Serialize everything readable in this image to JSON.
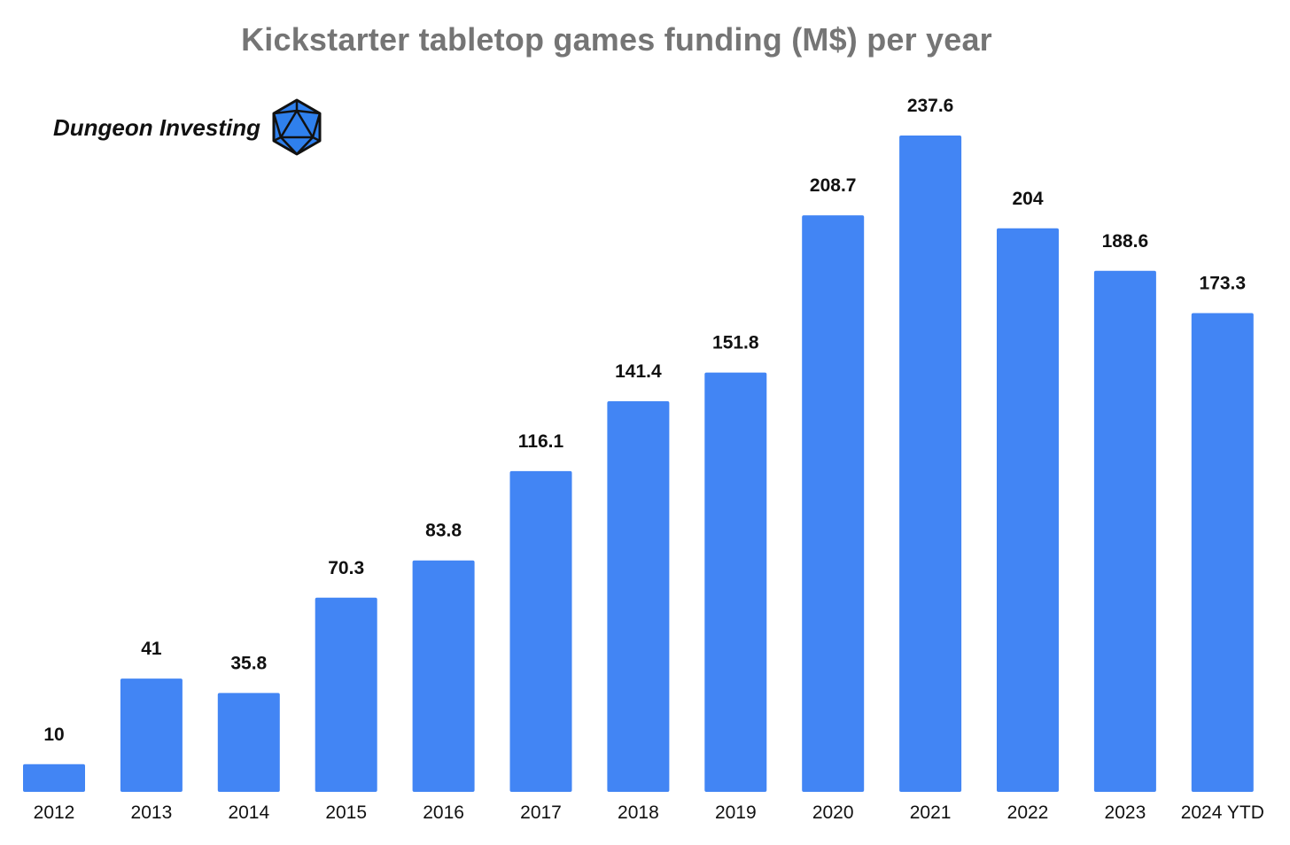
{
  "chart_data": {
    "type": "bar",
    "title": "Kickstarter tabletop games funding (M$) per year",
    "xlabel": "",
    "ylabel": "",
    "categories": [
      "2012",
      "2013",
      "2014",
      "2015",
      "2016",
      "2017",
      "2018",
      "2019",
      "2020",
      "2021",
      "2022",
      "2023",
      "2024 YTD"
    ],
    "values": [
      10,
      41,
      35.8,
      70.3,
      83.8,
      116.1,
      141.4,
      151.8,
      208.7,
      237.6,
      204,
      188.6,
      173.3
    ],
    "value_labels": [
      "10",
      "41",
      "35.8",
      "70.3",
      "83.8",
      "116.1",
      "141.4",
      "151.8",
      "208.7",
      "237.6",
      "204",
      "188.6",
      "173.3"
    ],
    "ylim": [
      0,
      250
    ],
    "grid": false,
    "legend": "none",
    "bar_color": "#4285F4"
  },
  "brand": {
    "name": "Dungeon Investing",
    "logo_icon": "d20-dice-icon",
    "logo_color": "#2F80ED"
  }
}
